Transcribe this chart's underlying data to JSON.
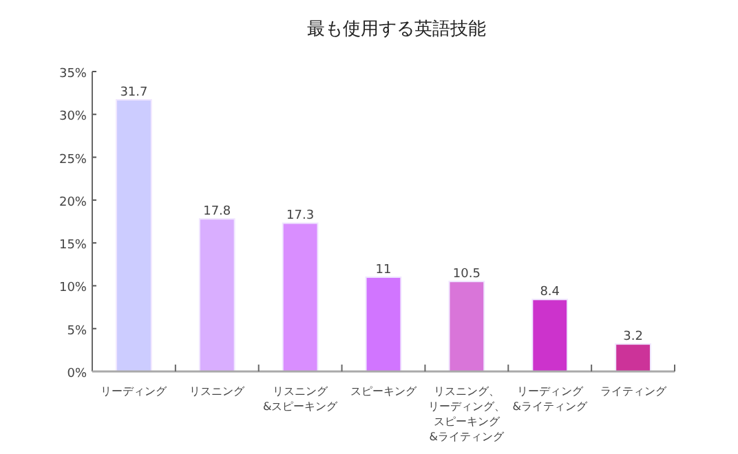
{
  "chart_data": {
    "type": "bar",
    "title": "最も使用する英語技能",
    "categories": [
      "リーディング",
      "リスニング",
      "リスニング&スピーキング",
      "スピーキング",
      "リスニング、リーディング、スピーキング&ライティング",
      "リーディング&ライティング",
      "ライティング"
    ],
    "values": [
      31.7,
      17.8,
      17.3,
      11,
      10.5,
      8.4,
      3.2
    ],
    "colors": [
      "#ccccff",
      "#d9aeff",
      "#d98eff",
      "#d175ff",
      "#d975d9",
      "#cc33cc",
      "#cc3399"
    ],
    "ylim": [
      0,
      35
    ],
    "yticks": [
      {
        "value": 0,
        "label": "0%"
      },
      {
        "value": 5,
        "label": "5%"
      },
      {
        "value": 10,
        "label": "10%"
      },
      {
        "value": 15,
        "label": "15%"
      },
      {
        "value": 20,
        "label": "20%"
      },
      {
        "value": 25,
        "label": "25%"
      },
      {
        "value": 30,
        "label": "30%"
      },
      {
        "value": 35,
        "label": "35%"
      }
    ],
    "data_labels": true,
    "grid": false
  }
}
